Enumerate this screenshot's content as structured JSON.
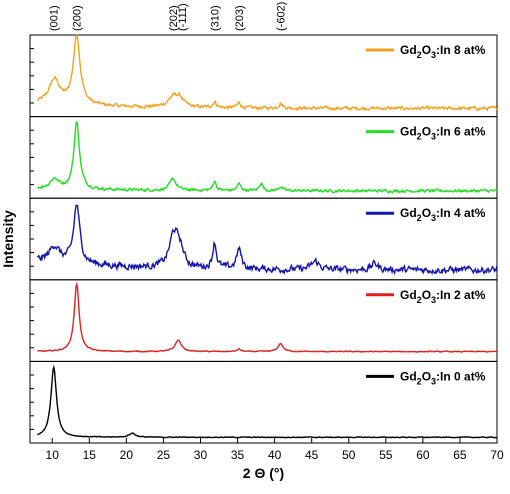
{
  "chart_data": {
    "type": "line",
    "xlabel": "2 Θ (°)",
    "ylabel": "Intensity",
    "xlim": [
      7,
      70
    ],
    "x_ticks": [
      "10",
      "15",
      "20",
      "25",
      "30",
      "35",
      "40",
      "45",
      "50",
      "55",
      "60",
      "65",
      "70"
    ],
    "y_ticks_shown": false,
    "grid": false,
    "legend_placement": "top-right of each panel",
    "peak_labels": [
      {
        "label": "(001)",
        "x": 10.2
      },
      {
        "label": "(200)",
        "x": 13.3
      },
      {
        "label": "(202)",
        "x": 26.3
      },
      {
        "label": "(-111)",
        "x": 27.5
      },
      {
        "label": "(310)",
        "x": 31.9
      },
      {
        "label": "(203)",
        "x": 35.2
      },
      {
        "label": "(-602)",
        "x": 40.8
      }
    ],
    "series": [
      {
        "name": "Gd2O3:In 8 at%",
        "legend_main": "Gd",
        "legend_sub1": "2",
        "legend_mid": "O",
        "legend_sub2": "3",
        "legend_tail": ":In 8 at%",
        "color": "#f5a020",
        "baseline": 0.1,
        "noise": 0.035,
        "trend": [
          0.06,
          0.0
        ],
        "peaks": [
          [
            10.3,
            0.3,
            0.9
          ],
          [
            13.3,
            0.85,
            0.55
          ],
          [
            26.3,
            0.12,
            0.8
          ],
          [
            27.2,
            0.1,
            0.6
          ],
          [
            31.9,
            0.07,
            0.3
          ],
          [
            35.2,
            0.06,
            0.3
          ],
          [
            40.8,
            0.06,
            0.3
          ]
        ]
      },
      {
        "name": "Gd2O3:In 6 at%",
        "legend_main": "Gd",
        "legend_sub1": "2",
        "legend_mid": "O",
        "legend_sub2": "3",
        "legend_tail": ":In 6 at%",
        "color": "#22dd22",
        "baseline": 0.09,
        "noise": 0.03,
        "trend": [
          0.03,
          0.0
        ],
        "peaks": [
          [
            10.3,
            0.12,
            0.7
          ],
          [
            13.3,
            0.82,
            0.45
          ],
          [
            26.3,
            0.14,
            0.5
          ],
          [
            31.9,
            0.12,
            0.25
          ],
          [
            35.2,
            0.08,
            0.3
          ],
          [
            38.2,
            0.1,
            0.25
          ],
          [
            40.8,
            0.05,
            0.3
          ]
        ]
      },
      {
        "name": "Gd2O3:In 4 at%",
        "legend_main": "Gd",
        "legend_sub1": "2",
        "legend_mid": "O",
        "legend_sub2": "3",
        "legend_tail": ":In 4 at%",
        "color": "#1515b0",
        "baseline": 0.12,
        "noise": 0.07,
        "trend": [
          0.12,
          0.0
        ],
        "peaks": [
          [
            10.3,
            0.2,
            0.8
          ],
          [
            13.3,
            0.72,
            0.5
          ],
          [
            26.4,
            0.4,
            0.7
          ],
          [
            27.2,
            0.2,
            0.6
          ],
          [
            31.9,
            0.32,
            0.3
          ],
          [
            35.2,
            0.24,
            0.4
          ],
          [
            45.5,
            0.1,
            0.6
          ],
          [
            53.5,
            0.08,
            0.5
          ]
        ]
      },
      {
        "name": "Gd2O3:In 2 at%",
        "legend_main": "Gd",
        "legend_sub1": "2",
        "legend_mid": "O",
        "legend_sub2": "3",
        "legend_tail": ":In 2 at%",
        "color": "#dd2222",
        "baseline": 0.12,
        "noise": 0.01,
        "trend": [
          0.0,
          0.0
        ],
        "peaks": [
          [
            13.3,
            0.83,
            0.4
          ],
          [
            27.0,
            0.14,
            0.5
          ],
          [
            35.2,
            0.03,
            0.3
          ],
          [
            40.8,
            0.1,
            0.4
          ]
        ]
      },
      {
        "name": "Gd2O3:In 0 at%",
        "legend_main": "Gd",
        "legend_sub1": "2",
        "legend_mid": "O",
        "legend_sub2": "3",
        "legend_tail": ":In 0 at%",
        "color": "#000000",
        "baseline": 0.07,
        "noise": 0.008,
        "trend": [
          0.0,
          0.0
        ],
        "peaks": [
          [
            10.2,
            0.86,
            0.45
          ],
          [
            20.8,
            0.05,
            0.5
          ]
        ]
      }
    ]
  }
}
